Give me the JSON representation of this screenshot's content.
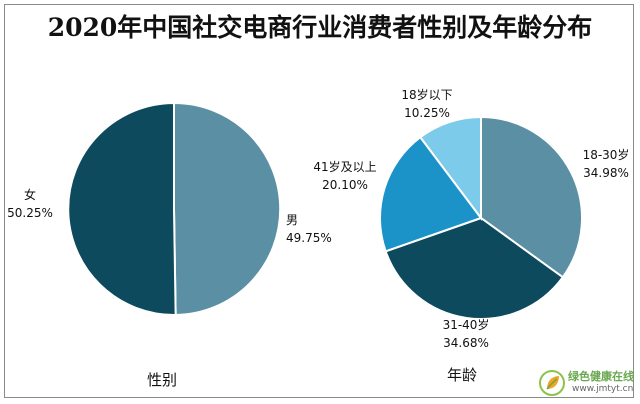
{
  "title": "2020年中国社交电商行业消费者性别及年龄分布",
  "chart_data": [
    {
      "type": "pie",
      "title": "",
      "xlabel": "性别",
      "slices": [
        {
          "label": "男",
          "value": 49.75,
          "value_label": "49.75%",
          "color": "#5b8fa3"
        },
        {
          "label": "女",
          "value": 50.25,
          "value_label": "50.25%",
          "color": "#0d4a5e"
        }
      ]
    },
    {
      "type": "pie",
      "title": "",
      "xlabel": "年龄",
      "slices": [
        {
          "label": "18-30岁",
          "value": 34.98,
          "value_label": "34.98%",
          "color": "#5b8fa3"
        },
        {
          "label": "31-40岁",
          "value": 34.68,
          "value_label": "34.68%",
          "color": "#0d4a5e"
        },
        {
          "label": "41岁及以上",
          "value": 20.1,
          "value_label": "20.10%",
          "color": "#1b93c9"
        },
        {
          "label": "18岁以下",
          "value": 10.25,
          "value_label": "10.25%",
          "color": "#7dcbeb"
        }
      ]
    }
  ],
  "watermark": {
    "name": "绿色健康在线",
    "url": "www.jmtyt.cn",
    "icon": "leaf-logo-icon"
  }
}
